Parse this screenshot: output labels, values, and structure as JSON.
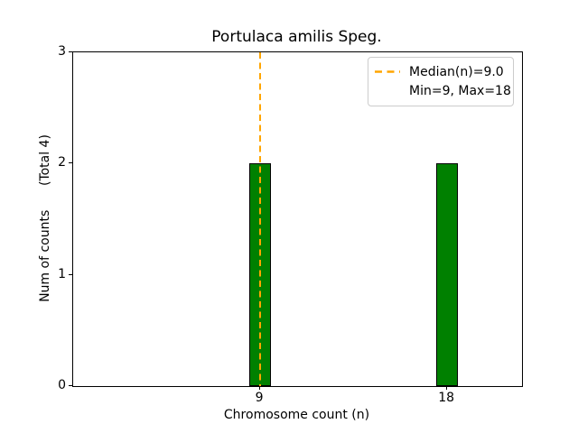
{
  "chart_data": {
    "type": "bar",
    "title": "Portulaca amilis Speg.",
    "xlabel": "Chromosome count (n)",
    "ylabel": "Num of counts      (Total 4)",
    "categories": [
      9,
      18
    ],
    "values": [
      2,
      2
    ],
    "xticks": [
      "9",
      "18"
    ],
    "yticks": [
      "0",
      "1",
      "2",
      "3"
    ],
    "xlim": [
      0,
      21.6
    ],
    "ylim": [
      0,
      3
    ],
    "bar_width_units": 1.05,
    "bar_color": "#008000",
    "bar_edge_color": "#000000",
    "median_line": {
      "x": 9,
      "color": "#FFA500",
      "style": "dashed"
    },
    "legend": {
      "position": "upper right",
      "entries": [
        {
          "label": "Median(n)=9.0",
          "has_line_sample": true
        },
        {
          "label": "Min=9, Max=18",
          "has_line_sample": false
        }
      ]
    },
    "grid": false
  }
}
